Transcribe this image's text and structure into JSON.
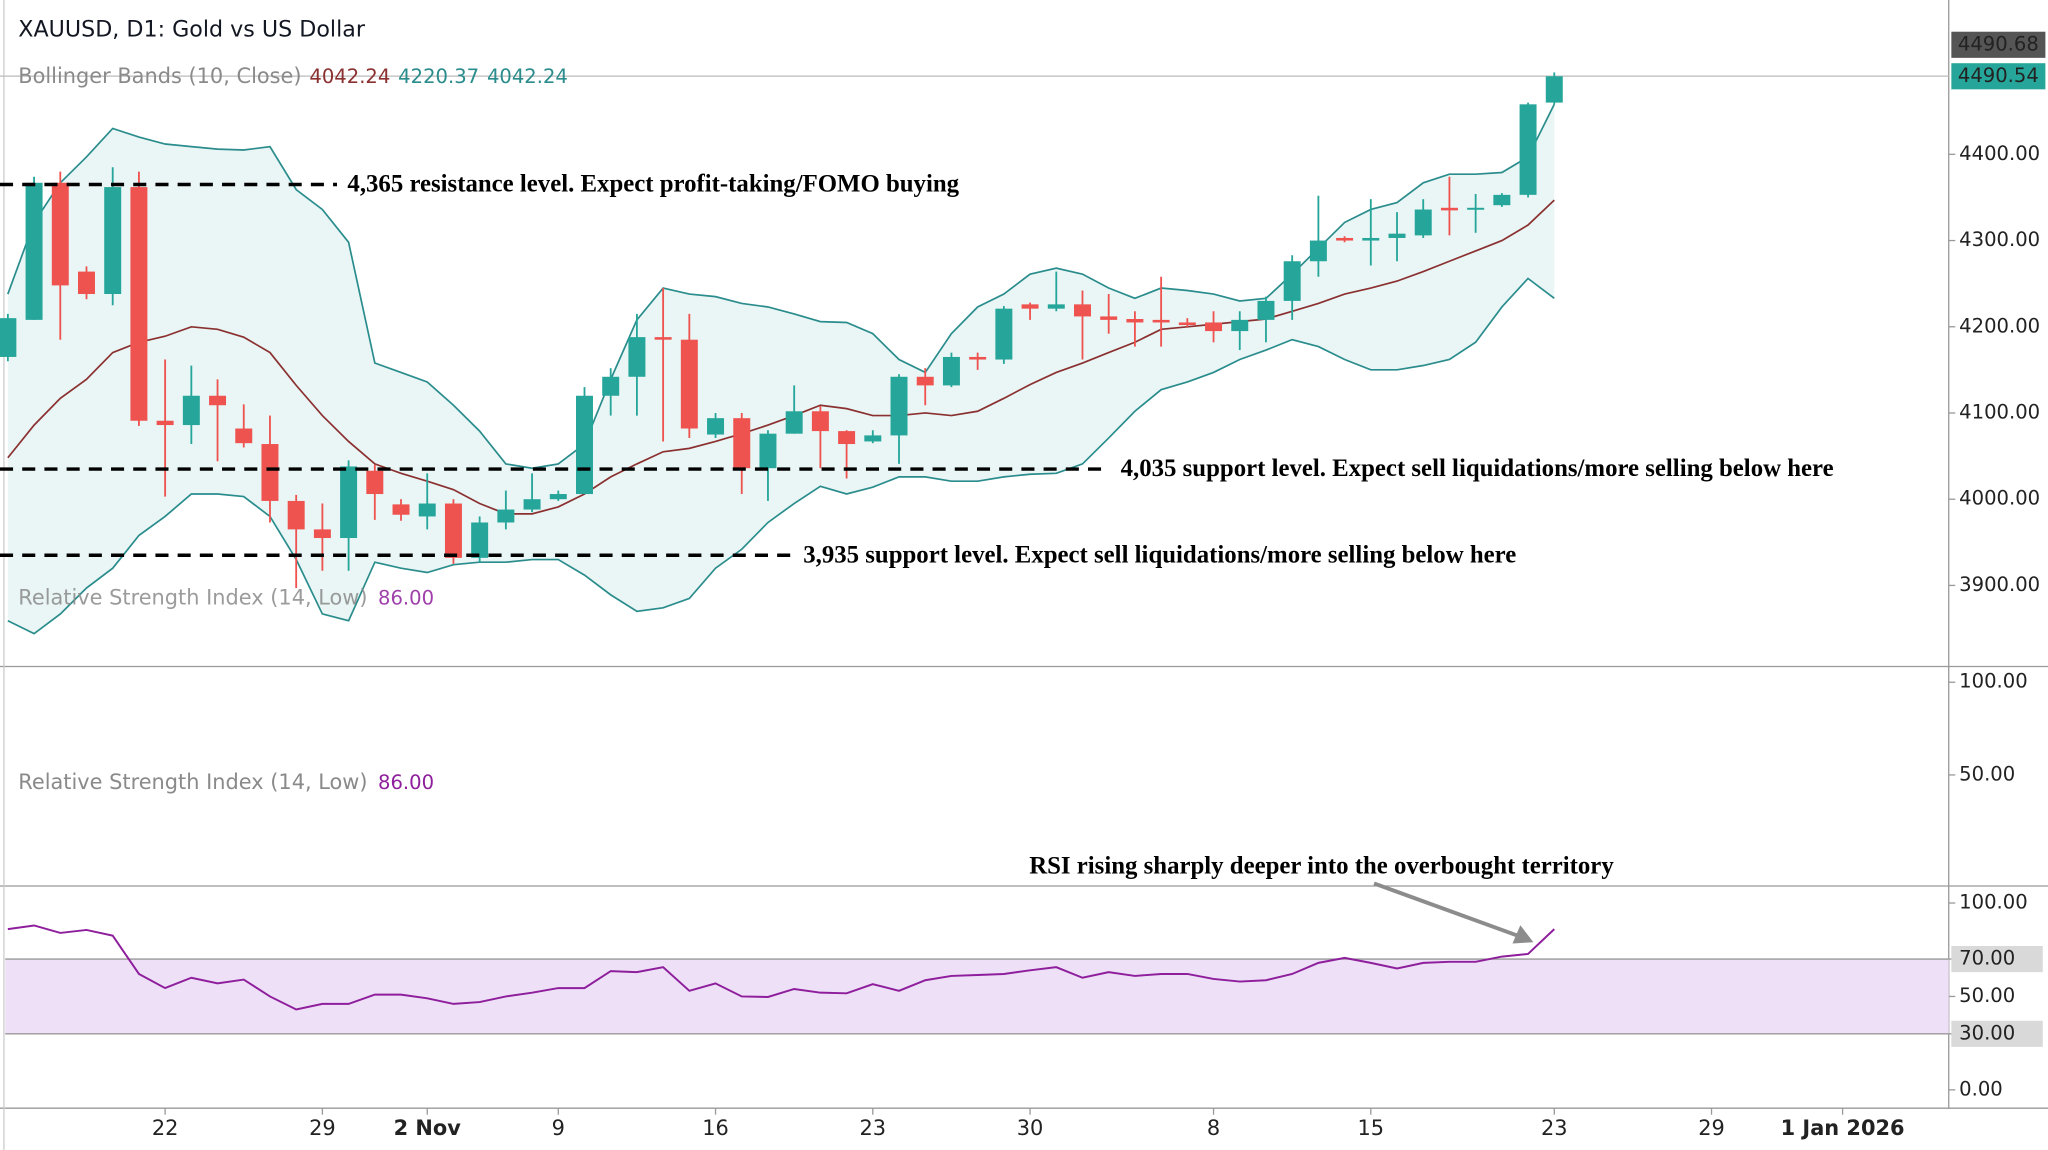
{
  "chart_data": [
    {
      "type": "candlestick",
      "title": "XAUUSD, D1: Gold vs US Dollar",
      "indicator": {
        "name": "Bollinger Bands (10, Close)",
        "values": [
          {
            "value": 4042.24,
            "color": "#8b3030"
          },
          {
            "value": 4220.37,
            "color": "#2a8c8c"
          },
          {
            "value": 4042.24,
            "color": "#2a8c8c"
          }
        ]
      },
      "overlay_label": {
        "name": "Relative Strength Index (14, Low)",
        "value": 86,
        "value_label": "86.00",
        "color": "#8e1e9c"
      },
      "up_color": "#26a69a",
      "down_color": "#ef5350",
      "candles": {
        "open": [
          4165,
          4208,
          4367,
          4264,
          4238,
          4362,
          4091,
          4086,
          4120,
          4082,
          4064,
          3998,
          3965,
          3955,
          4033,
          3994,
          3980,
          3995,
          3932,
          3973,
          3988,
          4000,
          4006,
          4120,
          4142,
          4188,
          4185,
          4075,
          4094,
          4036,
          4076,
          4102,
          4079,
          4067,
          4074,
          4142,
          4132,
          4165,
          4162,
          4226,
          4221,
          4226,
          4212,
          4209,
          4208,
          4205,
          4205,
          4195,
          4208,
          4230,
          4276,
          4303,
          4300,
          4303,
          4306,
          4338,
          4336,
          4341,
          4353,
          4460
        ],
        "high": [
          4215,
          4374,
          4380,
          4270,
          4385,
          4380,
          4162,
          4155,
          4139,
          4110,
          4097,
          4005,
          3995,
          4045,
          4040,
          4000,
          4030,
          4000,
          3980,
          4010,
          4030,
          4010,
          4130,
          4152,
          4215,
          4245,
          4215,
          4100,
          4100,
          4080,
          4132,
          4108,
          4080,
          4080,
          4145,
          4152,
          4170,
          4170,
          4224,
          4228,
          4264,
          4242,
          4238,
          4218,
          4258,
          4210,
          4218,
          4218,
          4235,
          4283,
          4352,
          4305,
          4348,
          4333,
          4348,
          4374,
          4354,
          4355,
          4460,
          4495
        ],
        "low": [
          4160,
          4208,
          4185,
          4232,
          4225,
          4085,
          4003,
          4064,
          4044,
          4060,
          3973,
          3897,
          3917,
          3917,
          3976,
          3975,
          3965,
          3925,
          3927,
          3965,
          3985,
          3998,
          4006,
          4097,
          4097,
          4067,
          4071,
          4071,
          4006,
          3998,
          4076,
          4036,
          4024,
          4065,
          4041,
          4109,
          4130,
          4150,
          4157,
          4208,
          4218,
          4162,
          4192,
          4177,
          4177,
          4200,
          4182,
          4173,
          4182,
          4208,
          4258,
          4298,
          4271,
          4276,
          4303,
          4306,
          4309,
          4339,
          4350,
          4458
        ],
        "close": [
          4210,
          4367,
          4248,
          4238,
          4362,
          4091,
          4086,
          4120,
          4109,
          4065,
          3998,
          3965,
          3955,
          4038,
          4006,
          3982,
          3995,
          3932,
          3973,
          3988,
          4000,
          4006,
          4120,
          4142,
          4188,
          4185,
          4082,
          4094,
          4036,
          4076,
          4102,
          4079,
          4064,
          4074,
          4142,
          4132,
          4165,
          4162,
          4221,
          4221,
          4226,
          4212,
          4208,
          4205,
          4205,
          4202,
          4195,
          4208,
          4230,
          4276,
          4300,
          4300,
          4303,
          4308,
          4336,
          4335,
          4338,
          4353,
          4458,
          4490.54
        ]
      },
      "bands": [
        {
          "color": "#2a8c8c",
          "values": [
            4238,
            4321,
            4367,
            4397,
            4430,
            4420,
            4412,
            4409,
            4406,
            4405,
            4409,
            4359,
            4336,
            4298,
            4158,
            4147,
            4136,
            4109,
            4079,
            4041,
            4036,
            4041,
            4064,
            4139,
            4208,
            4245,
            4238,
            4235,
            4227,
            4223,
            4215,
            4206,
            4205,
            4192,
            4162,
            4147,
            4192,
            4223,
            4238,
            4261,
            4268,
            4261,
            4245,
            4233,
            4245,
            4242,
            4238,
            4230,
            4233,
            4261,
            4291,
            4321,
            4336,
            4344,
            4367,
            4377,
            4377,
            4379,
            4397,
            4458
          ]
        },
        {
          "color": "#8b3030",
          "values": [
            4048,
            4086,
            4117,
            4139,
            4170,
            4182,
            4189,
            4200,
            4197,
            4188,
            4170,
            4132,
            4097,
            4067,
            4041,
            4030,
            4021,
            4011,
            3995,
            3983,
            3983,
            3991,
            4006,
            4026,
            4041,
            4055,
            4059,
            4067,
            4076,
            4086,
            4097,
            4109,
            4105,
            4097,
            4097,
            4100,
            4097,
            4102,
            4117,
            4133,
            4147,
            4158,
            4170,
            4182,
            4197,
            4200,
            4203,
            4206,
            4209,
            4218,
            4227,
            4238,
            4245,
            4253,
            4264,
            4276,
            4288,
            4300,
            4318,
            4347
          ]
        },
        {
          "color": "#2a8c8c",
          "values": [
            3859,
            3844,
            3867,
            3897,
            3920,
            3958,
            3980,
            4006,
            4006,
            4003,
            3980,
            3930,
            3867,
            3859,
            3927,
            3920,
            3915,
            3924,
            3927,
            3927,
            3930,
            3930,
            3912,
            3889,
            3870,
            3874,
            3885,
            3920,
            3942,
            3973,
            3995,
            4015,
            4006,
            4014,
            4026,
            4026,
            4021,
            4021,
            4026,
            4029,
            4030,
            4041,
            4071,
            4102,
            4127,
            4136,
            4147,
            4162,
            4173,
            4185,
            4177,
            4162,
            4150,
            4150,
            4155,
            4162,
            4182,
            4223,
            4256,
            4233
          ]
        }
      ],
      "band_fill": "#26a69a",
      "levels": [
        {
          "value": 4365,
          "label": "4,365 resistance level. Expect profit-taking/FOMO buying"
        },
        {
          "value": 4035,
          "label": "4,035 support level. Expect sell liquidations/more selling below here"
        },
        {
          "value": 3935,
          "label": "3,935 support level. Expect sell liquidations/more selling below here"
        }
      ],
      "price_labels": [
        {
          "value": 4490.68,
          "color": "#555555"
        },
        {
          "value": 4490.54,
          "color": "#26a69a"
        }
      ],
      "ylim": [
        3806,
        4579
      ],
      "yticks": [
        {
          "value": 3900,
          "label": "3900.00"
        },
        {
          "value": 4000,
          "label": "4000.00"
        },
        {
          "value": 4100,
          "label": "4100.00"
        },
        {
          "value": 4200,
          "label": "4200.00"
        },
        {
          "value": 4300,
          "label": "4300.00"
        },
        {
          "value": 4400,
          "label": "4400.00"
        }
      ]
    },
    {
      "type": "panel",
      "label": {
        "name": "Relative Strength Index (14, Low)",
        "value": 86,
        "value_label": "86.00",
        "color": "#8e1e9c"
      },
      "ylim": [
        -9.9,
        108.5
      ],
      "yticks": [
        {
          "value": 50,
          "label": "50.00"
        },
        {
          "value": 100,
          "label": "100.00"
        }
      ]
    },
    {
      "type": "line",
      "series": [
        {
          "name": "Relative Strength Index (14, Low)",
          "color": "#8e1e9c",
          "values": [
            86,
            88,
            84,
            85.6,
            82.5,
            62,
            54.5,
            60,
            57,
            59,
            50,
            43,
            46,
            46,
            51,
            51,
            49,
            46,
            47,
            50,
            52,
            54.5,
            54.5,
            63.6,
            63,
            65.7,
            53,
            57,
            50,
            49.7,
            54,
            52,
            51.7,
            56.6,
            53,
            58.7,
            61,
            61.5,
            62,
            64,
            65.7,
            60,
            63,
            61,
            62,
            62,
            59.4,
            58,
            58.7,
            62,
            68,
            70.6,
            68,
            65,
            68,
            68.5,
            68.5,
            71.3,
            72.7,
            86
          ]
        }
      ],
      "band": [
        30,
        70
      ],
      "band_color": "#ede0f7",
      "annotation": "RSI rising sharply deeper into the overbought territory",
      "ylim": [
        -9.8,
        109.1
      ],
      "yticks": [
        {
          "value": 0,
          "label": "0.00"
        },
        {
          "value": 30,
          "label": "30.00",
          "boxed": true
        },
        {
          "value": 50,
          "label": "50.00"
        },
        {
          "value": 70,
          "label": "70.00",
          "boxed": true
        },
        {
          "value": 100,
          "label": "100.00"
        }
      ],
      "xlim": [
        -0.3,
        73.95
      ],
      "xticks": [
        {
          "value": 6,
          "label": "22"
        },
        {
          "value": 12,
          "label": "29"
        },
        {
          "value": 16,
          "label": "2 Nov",
          "bold": true
        },
        {
          "value": 21,
          "label": "9"
        },
        {
          "value": 27,
          "label": "16"
        },
        {
          "value": 33,
          "label": "23"
        },
        {
          "value": 39,
          "label": "30"
        },
        {
          "value": 46,
          "label": "8"
        },
        {
          "value": 52,
          "label": "15"
        },
        {
          "value": 59,
          "label": "23"
        },
        {
          "value": 65,
          "label": "29"
        },
        {
          "value": 70,
          "label": "1 Jan 2026",
          "bold": true
        }
      ]
    }
  ]
}
